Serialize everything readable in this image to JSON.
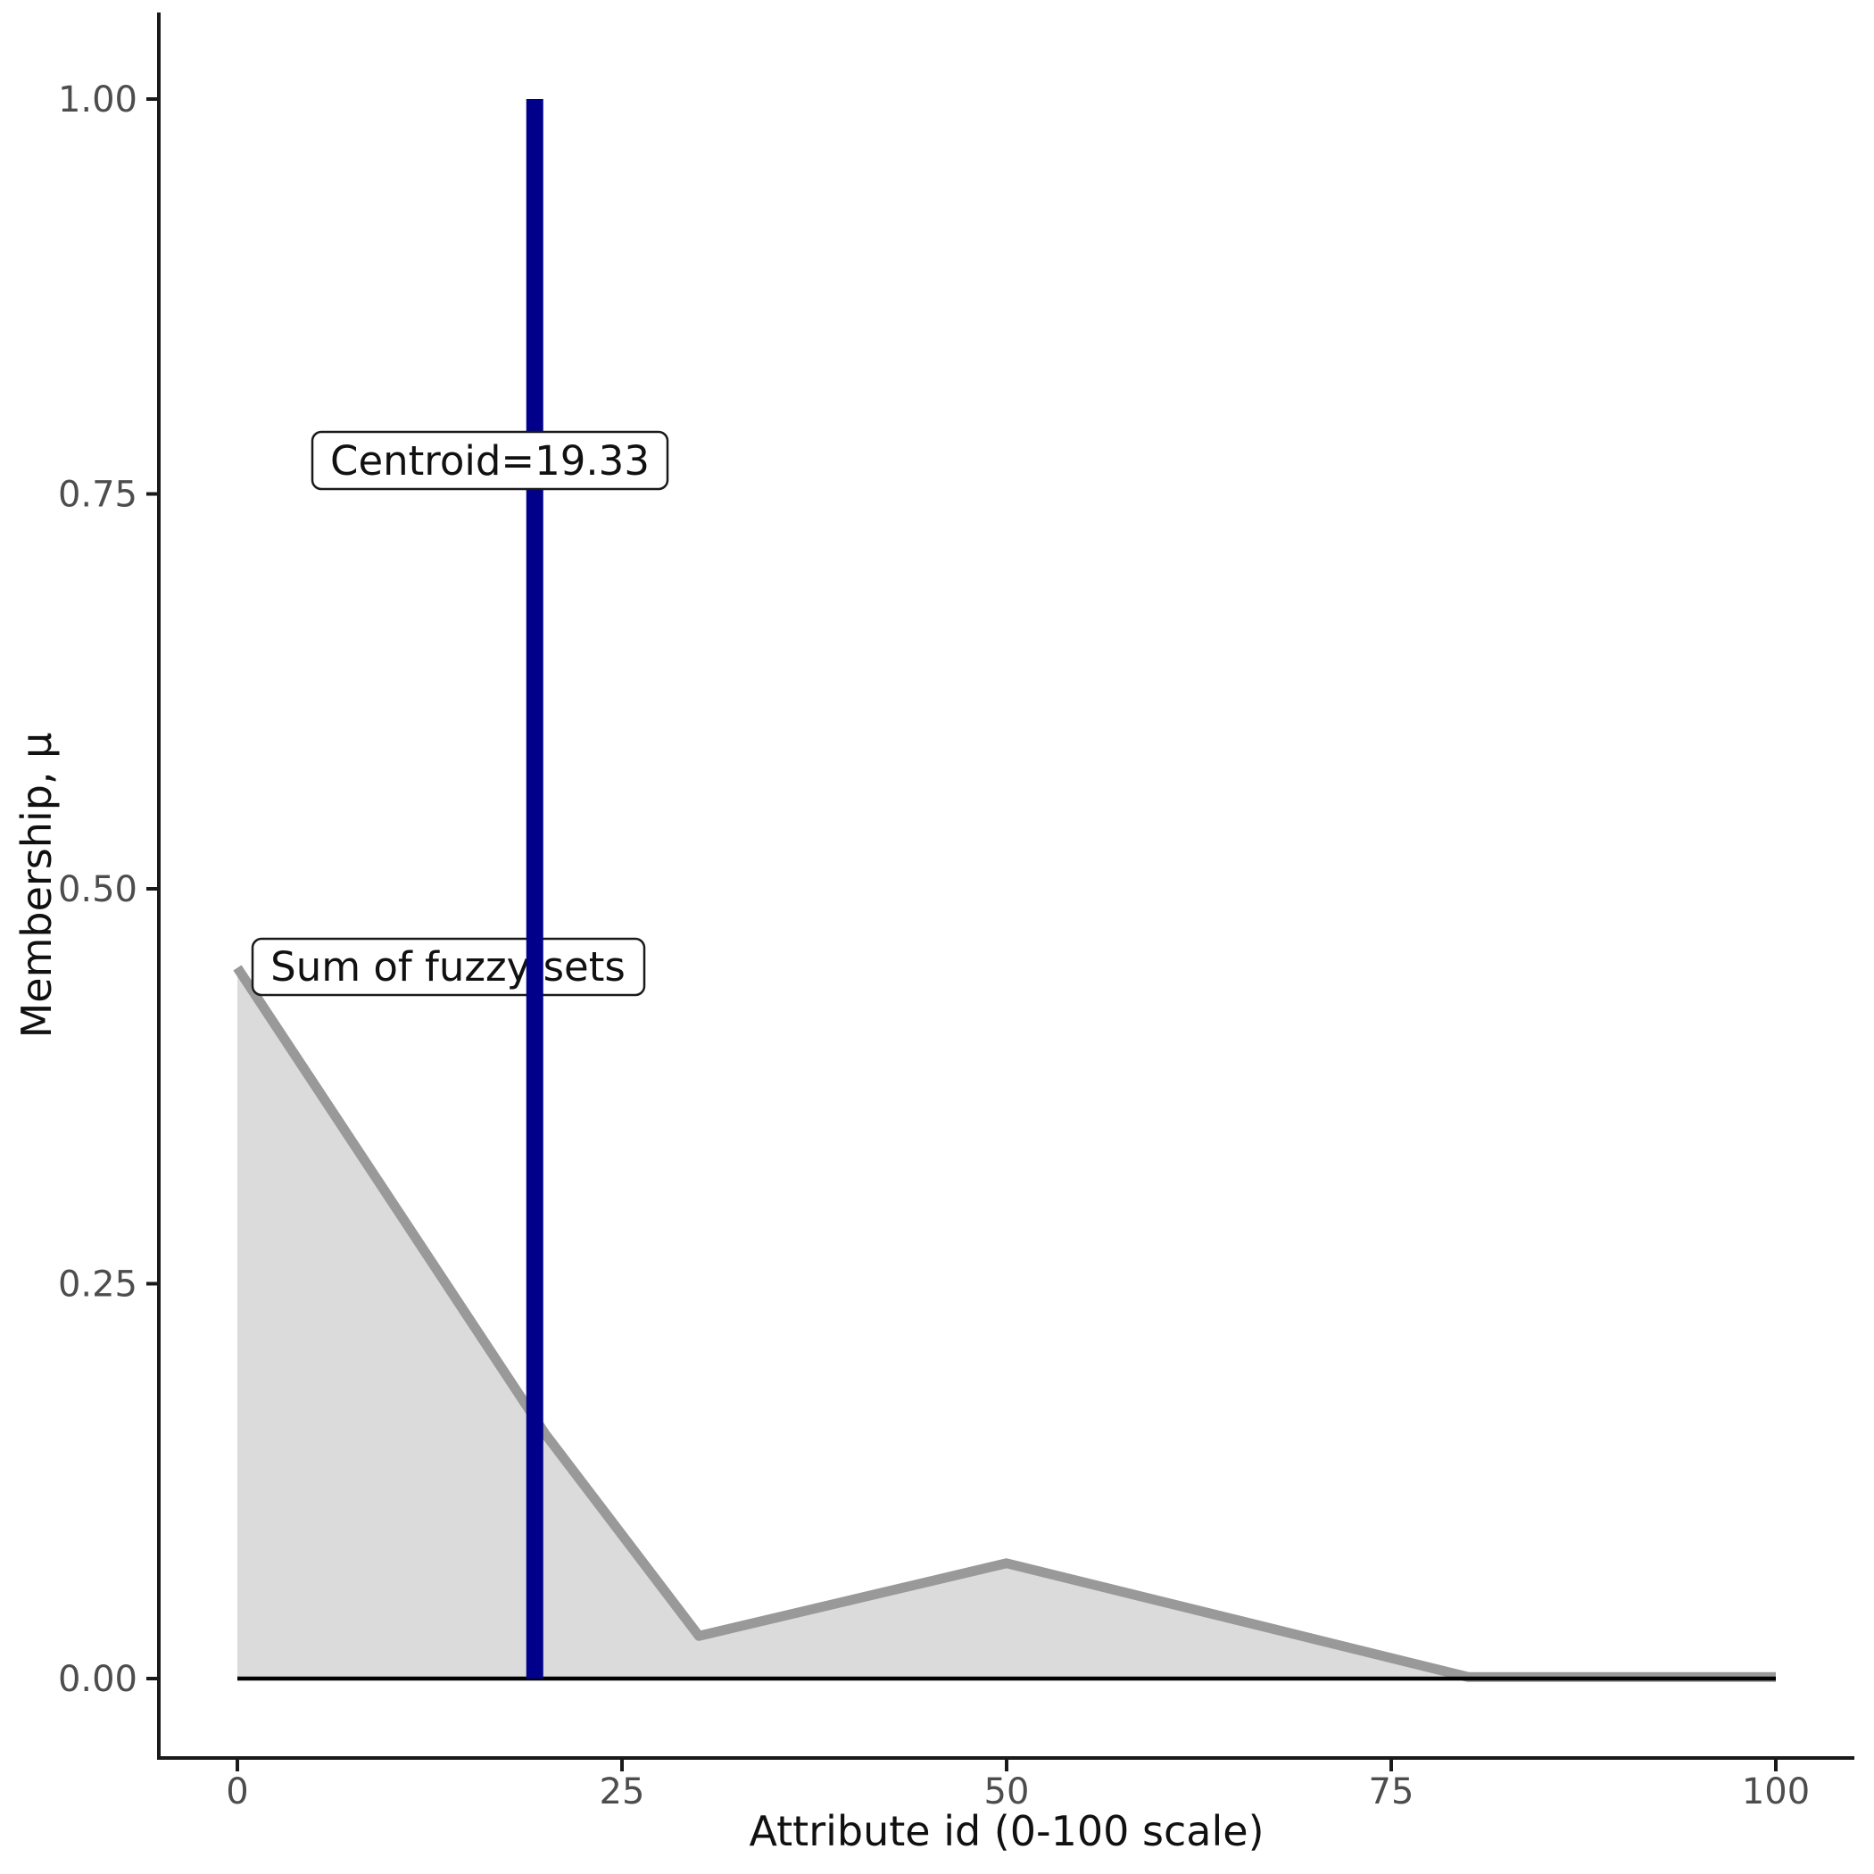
{
  "annotations": {
    "sum_label": "Sum of fuzzy sets",
    "centroid_label": "Centroid=19.33"
  },
  "axes": {
    "x": {
      "title": "Attribute id (0-100 scale)",
      "range": [
        0,
        100
      ],
      "ticks": [
        {
          "value": 0,
          "label": "0"
        },
        {
          "value": 25,
          "label": "25"
        },
        {
          "value": 50,
          "label": "50"
        },
        {
          "value": 75,
          "label": "75"
        },
        {
          "value": 100,
          "label": "100"
        }
      ]
    },
    "y": {
      "title": "Membership, μ",
      "range": [
        0,
        1
      ],
      "ticks": [
        {
          "value": 0.0,
          "label": "0.00"
        },
        {
          "value": 0.25,
          "label": "0.25"
        },
        {
          "value": 0.5,
          "label": "0.50"
        },
        {
          "value": 0.75,
          "label": "0.75"
        },
        {
          "value": 1.0,
          "label": "1.00"
        }
      ]
    }
  },
  "chart_data": {
    "type": "area",
    "title": "",
    "xlabel": "Attribute id (0-100 scale)",
    "ylabel": "Membership, μ",
    "xlim": [
      0,
      100
    ],
    "ylim": [
      0,
      1
    ],
    "grid": false,
    "legend": "none",
    "series": [
      {
        "name": "Sum of fuzzy sets",
        "points": [
          {
            "x": 0,
            "mu": 0.45
          },
          {
            "x": 20,
            "mu": 0.155
          },
          {
            "x": 30,
            "mu": 0.027
          },
          {
            "x": 50,
            "mu": 0.073
          },
          {
            "x": 80,
            "mu": 0.001
          },
          {
            "x": 100,
            "mu": 0.001
          }
        ]
      }
    ],
    "baseline_y": 0,
    "centroid": 19.33,
    "colors": {
      "area_fill": "#DBDBDB",
      "area_stroke": "#999999",
      "centroid_line": "#00008B",
      "baseline": "#000000",
      "tick_text": "#4D4D4D",
      "axis": "#1a1a1a"
    }
  }
}
